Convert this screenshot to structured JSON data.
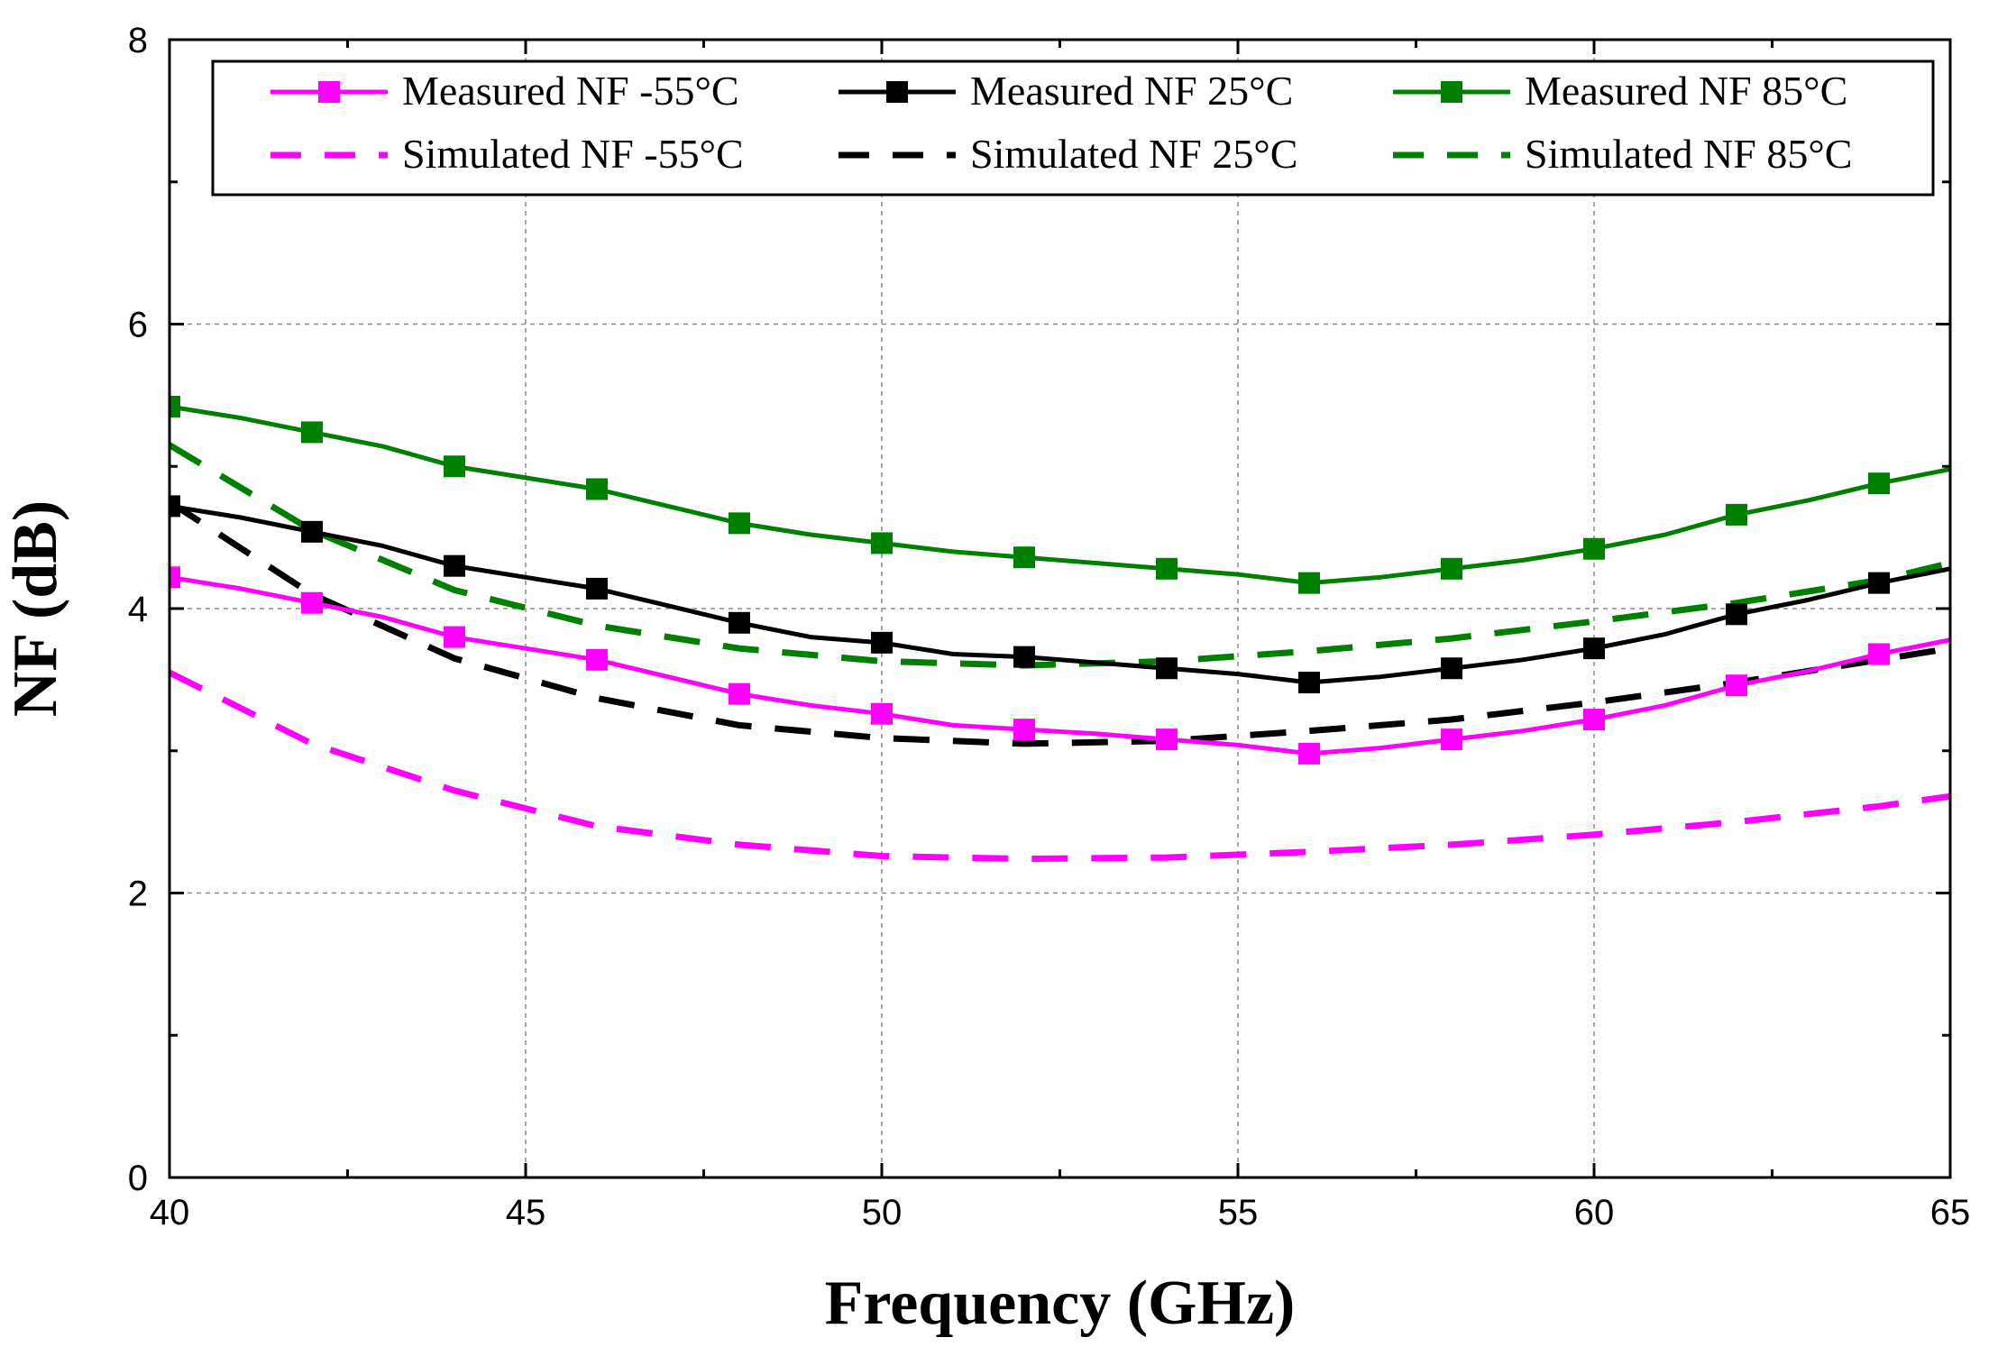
{
  "chart_data": {
    "type": "line",
    "title": "",
    "xlabel": "Frequency (GHz)",
    "ylabel": "NF (dB)",
    "xlim": [
      40,
      65
    ],
    "ylim": [
      0,
      8
    ],
    "x_ticks": [
      40,
      45,
      50,
      55,
      60,
      65
    ],
    "x_tick_labels": [
      "40",
      "45",
      "50",
      "55",
      "60",
      "65"
    ],
    "y_ticks": [
      0,
      2,
      4,
      6,
      8
    ],
    "y_tick_labels": [
      "0",
      "2",
      "4",
      "6",
      "8"
    ],
    "grid": true,
    "legend_position": "top",
    "series": [
      {
        "name": "Measured NF -55°C",
        "color": "#ff00ff",
        "style": "solid",
        "marker": "square",
        "x": [
          40,
          41,
          42,
          43,
          44,
          45,
          46,
          47,
          48,
          49,
          50,
          51,
          52,
          53,
          54,
          55,
          56,
          57,
          58,
          59,
          60,
          61,
          62,
          63,
          64,
          65
        ],
        "values": [
          4.22,
          4.14,
          4.04,
          3.94,
          3.8,
          3.72,
          3.64,
          3.52,
          3.4,
          3.32,
          3.26,
          3.18,
          3.15,
          3.12,
          3.08,
          3.04,
          2.98,
          3.02,
          3.08,
          3.14,
          3.22,
          3.32,
          3.46,
          3.56,
          3.68,
          3.78
        ]
      },
      {
        "name": "Measured NF 25°C",
        "color": "#000000",
        "style": "solid",
        "marker": "square",
        "x": [
          40,
          41,
          42,
          43,
          44,
          45,
          46,
          47,
          48,
          49,
          50,
          51,
          52,
          53,
          54,
          55,
          56,
          57,
          58,
          59,
          60,
          61,
          62,
          63,
          64,
          65
        ],
        "values": [
          4.72,
          4.64,
          4.54,
          4.44,
          4.3,
          4.22,
          4.14,
          4.02,
          3.9,
          3.8,
          3.76,
          3.68,
          3.66,
          3.62,
          3.58,
          3.54,
          3.48,
          3.52,
          3.58,
          3.64,
          3.72,
          3.82,
          3.96,
          4.06,
          4.18,
          4.28
        ]
      },
      {
        "name": "Measured NF 85°C",
        "color": "#008000",
        "style": "solid",
        "marker": "square",
        "x": [
          40,
          41,
          42,
          43,
          44,
          45,
          46,
          47,
          48,
          49,
          50,
          51,
          52,
          53,
          54,
          55,
          56,
          57,
          58,
          59,
          60,
          61,
          62,
          63,
          64,
          65
        ],
        "values": [
          5.42,
          5.34,
          5.24,
          5.14,
          5.0,
          4.92,
          4.84,
          4.72,
          4.6,
          4.52,
          4.46,
          4.4,
          4.36,
          4.32,
          4.28,
          4.24,
          4.18,
          4.22,
          4.28,
          4.34,
          4.42,
          4.52,
          4.66,
          4.76,
          4.88,
          4.98
        ]
      },
      {
        "name": "Simulated NF -55°C",
        "color": "#ff00ff",
        "style": "dashed",
        "marker": "none",
        "x": [
          40,
          42,
          44,
          46,
          48,
          50,
          52,
          54,
          56,
          58,
          60,
          62,
          64,
          65
        ],
        "values": [
          3.55,
          3.05,
          2.72,
          2.47,
          2.34,
          2.26,
          2.24,
          2.25,
          2.29,
          2.34,
          2.41,
          2.5,
          2.61,
          2.68
        ]
      },
      {
        "name": "Simulated NF 25°C",
        "color": "#000000",
        "style": "dashed",
        "marker": "none",
        "x": [
          40,
          42,
          44,
          46,
          48,
          50,
          52,
          54,
          56,
          58,
          60,
          62,
          64,
          65
        ],
        "values": [
          4.75,
          4.1,
          3.65,
          3.37,
          3.18,
          3.09,
          3.05,
          3.07,
          3.14,
          3.22,
          3.34,
          3.48,
          3.64,
          3.72
        ]
      },
      {
        "name": "Simulated NF 85°C",
        "color": "#008000",
        "style": "dashed",
        "marker": "none",
        "x": [
          40,
          42,
          44,
          46,
          48,
          50,
          52,
          54,
          56,
          58,
          60,
          62,
          64,
          65
        ],
        "values": [
          5.15,
          4.55,
          4.13,
          3.88,
          3.72,
          3.63,
          3.6,
          3.63,
          3.7,
          3.79,
          3.91,
          4.04,
          4.2,
          4.32
        ]
      }
    ]
  }
}
